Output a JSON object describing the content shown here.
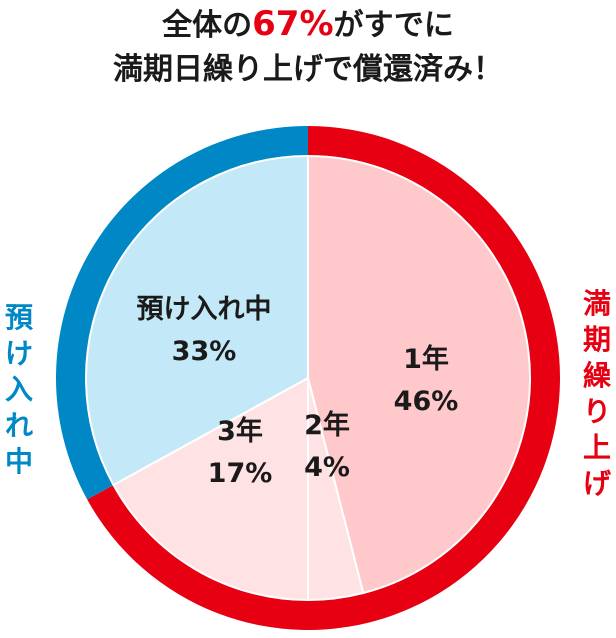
{
  "title": {
    "line1_prefix": "全体の",
    "line1_highlight": "67%",
    "line1_suffix": "がすでに",
    "line2": "満期日繰り上げで償還済み！"
  },
  "side_labels": {
    "left": "預け入れ中",
    "right": "満期繰り上げ"
  },
  "colors": {
    "red": "#e60012",
    "blue": "#0088c6",
    "pink_dark": "#ffc9cb",
    "pink_light": "#ffe3e4",
    "light_blue": "#c3e8f7",
    "text": "#1a1a1a"
  },
  "chart_data": {
    "type": "pie",
    "slices": [
      {
        "label": "1年",
        "value": 46,
        "value_label": "46%",
        "color": "#ffc9cb",
        "group": "満期繰り上げ"
      },
      {
        "label": "2年",
        "value": 4,
        "value_label": "4%",
        "color": "#ffe3e4",
        "group": "満期繰り上げ"
      },
      {
        "label": "3年",
        "value": 17,
        "value_label": "17%",
        "color": "#ffe3e4",
        "group": "満期繰り上げ"
      },
      {
        "label": "預け入れ中",
        "value": 33,
        "value_label": "33%",
        "color": "#c3e8f7",
        "group": "預け入れ中"
      }
    ],
    "outer_ring": [
      {
        "label": "満期繰り上げ",
        "value": 67,
        "color": "#e60012"
      },
      {
        "label": "預け入れ中",
        "value": 33,
        "color": "#0088c6"
      }
    ]
  }
}
